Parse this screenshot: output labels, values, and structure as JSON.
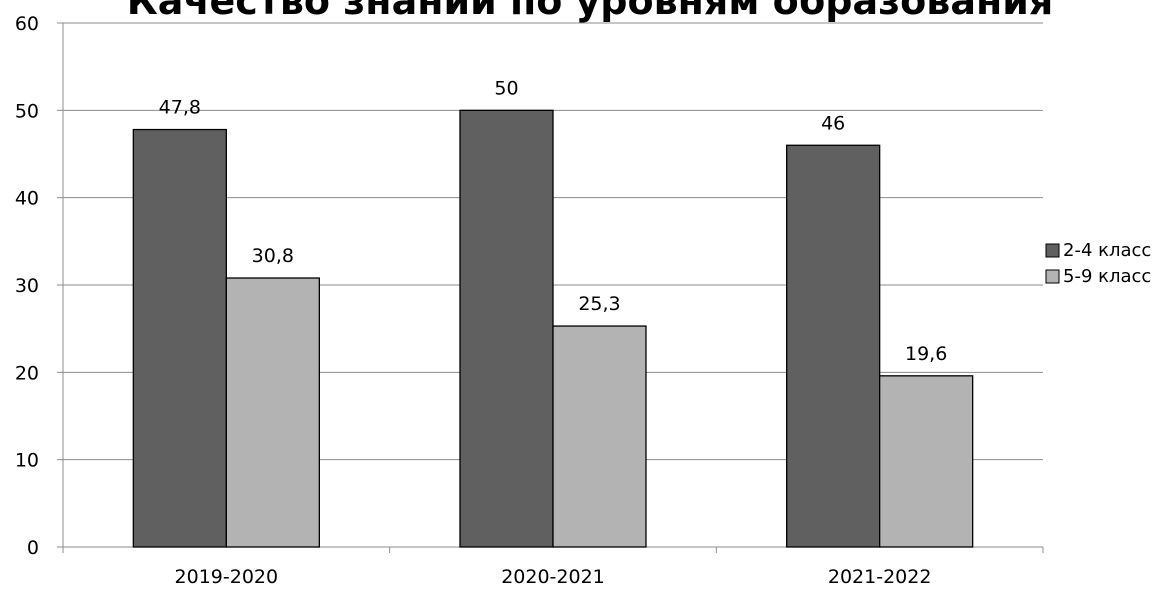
{
  "chart_data": {
    "type": "bar",
    "title": "Качество знаний по уровням образования",
    "categories": [
      "2019-2020",
      "2020-2021",
      "2021-2022"
    ],
    "series": [
      {
        "name": "2-4 класс",
        "values": [
          47.8,
          50,
          46
        ],
        "value_labels": [
          "47,8",
          "50",
          "46"
        ],
        "color": "#606060"
      },
      {
        "name": "5-9 класс",
        "values": [
          30.8,
          25.3,
          19.6
        ],
        "value_labels": [
          "30,8",
          "25,3",
          "19,6"
        ],
        "color": "#b3b3b3"
      }
    ],
    "ylim": [
      0,
      60
    ],
    "yticks": [
      0,
      10,
      20,
      30,
      40,
      50,
      60
    ],
    "grid": true,
    "legend_position": "right"
  }
}
